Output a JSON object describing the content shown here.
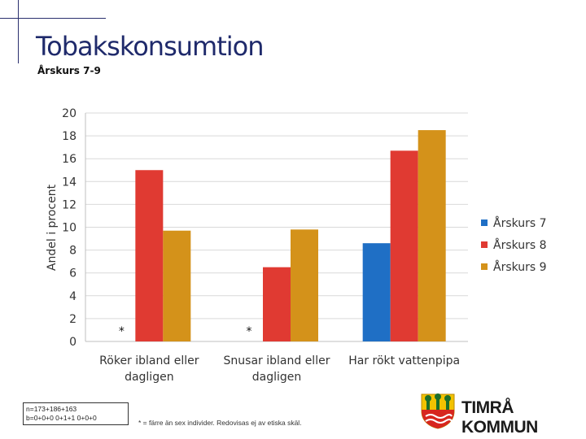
{
  "header": {
    "title": "Tobakskonsumtion",
    "subtitle": "Årskurs 7-9"
  },
  "chart_data": {
    "type": "bar",
    "ylabel": "Andel i procent",
    "ylim": [
      0,
      20
    ],
    "yticks": [
      0,
      2,
      4,
      6,
      8,
      10,
      12,
      14,
      16,
      18,
      20
    ],
    "grid": true,
    "legend_position": "right",
    "categories": [
      "Röker ibland eller dagligen",
      "Snusar ibland eller dagligen",
      "Har rökt vattenpipa"
    ],
    "category_lines": [
      [
        "Röker ibland eller",
        "dagligen"
      ],
      [
        "Snusar ibland eller",
        "dagligen"
      ],
      [
        "Har rökt vattenpipa"
      ]
    ],
    "series": [
      {
        "name": "Årskurs 7",
        "color": "#1f6fc5",
        "values": [
          null,
          null,
          8.6
        ]
      },
      {
        "name": "Årskurs 8",
        "color": "#e03a32",
        "values": [
          15.0,
          6.5,
          16.7
        ]
      },
      {
        "name": "Årskurs 9",
        "color": "#d4921a",
        "values": [
          9.7,
          9.8,
          18.5
        ]
      }
    ],
    "annotations": [
      {
        "text": "*",
        "category": 0,
        "series": 0
      },
      {
        "text": "*",
        "category": 1,
        "series": 0
      }
    ]
  },
  "footer": {
    "sample_lines": [
      "n=173+186+163",
      "b=0+0+0 0+1+1 0+0+0"
    ],
    "footnote": "* = färre än sex individer. Redovisas ej av etiska skäl.",
    "brand": "TIMRÅ KOMMUN"
  }
}
